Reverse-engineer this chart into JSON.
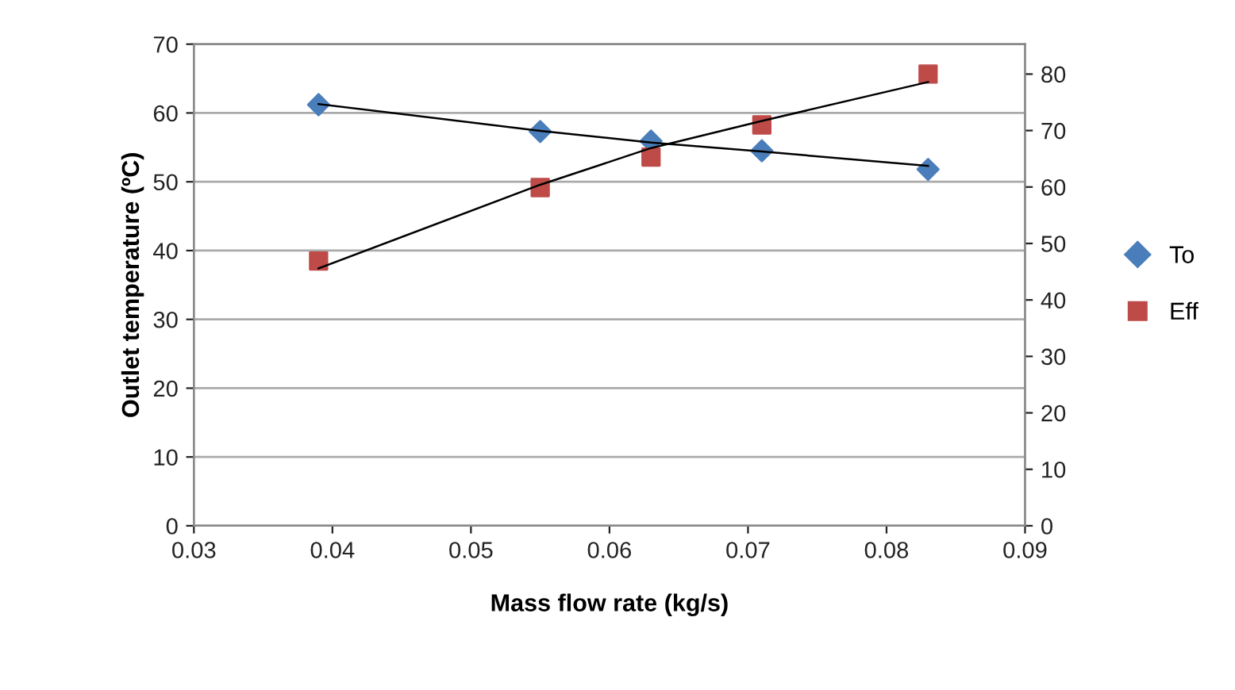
{
  "chart_data": {
    "type": "scatter",
    "xlabel": "Mass flow rate (kg/s)",
    "ylabel": "Outlet temperature (ºC)",
    "x": [
      0.039,
      0.055,
      0.063,
      0.071,
      0.083
    ],
    "series": [
      {
        "name": "To",
        "color": "#4a7ebb",
        "marker": "diamond",
        "values": [
          61.2,
          57.3,
          55.9,
          54.5,
          51.8
        ]
      },
      {
        "name": "Eff",
        "color": "#be4b48",
        "marker": "square",
        "axis": "y2",
        "values": [
          46.9,
          59.9,
          65.3,
          71.0,
          80.0
        ]
      },
      {
        "type": "line",
        "color": "#000000",
        "marker": "none",
        "line_style": "solid",
        "x": [
          0.039,
          0.055,
          0.063,
          0.071,
          0.083
        ],
        "values": [
          61.3,
          57.4,
          55.7,
          54.4,
          52.3
        ]
      },
      {
        "type": "line",
        "color": "#000000",
        "marker": "none",
        "line_style": "solid",
        "axis": "y2",
        "x": [
          0.039,
          0.055,
          0.063,
          0.071,
          0.083
        ],
        "values": [
          45.6,
          60.4,
          66.9,
          71.7,
          78.6
        ]
      }
    ],
    "xlim": [
      0.03,
      0.09
    ],
    "xticks": [
      {
        "value": 0.03,
        "label": "0.03"
      },
      {
        "value": 0.04,
        "label": "0.04"
      },
      {
        "value": 0.05,
        "label": "0.05"
      },
      {
        "value": 0.06,
        "label": "0.06"
      },
      {
        "value": 0.07,
        "label": "0.07"
      },
      {
        "value": 0.08,
        "label": "0.08"
      },
      {
        "value": 0.09,
        "label": "0.09"
      }
    ],
    "ylim": [
      0,
      70
    ],
    "yticks": [
      0,
      10,
      20,
      30,
      40,
      50,
      60,
      70
    ],
    "y2lim": [
      0,
      85.3
    ],
    "y2ticks": [
      0,
      10,
      20,
      30,
      40,
      50,
      60,
      70,
      80
    ],
    "grid": "y",
    "legend": "right"
  }
}
